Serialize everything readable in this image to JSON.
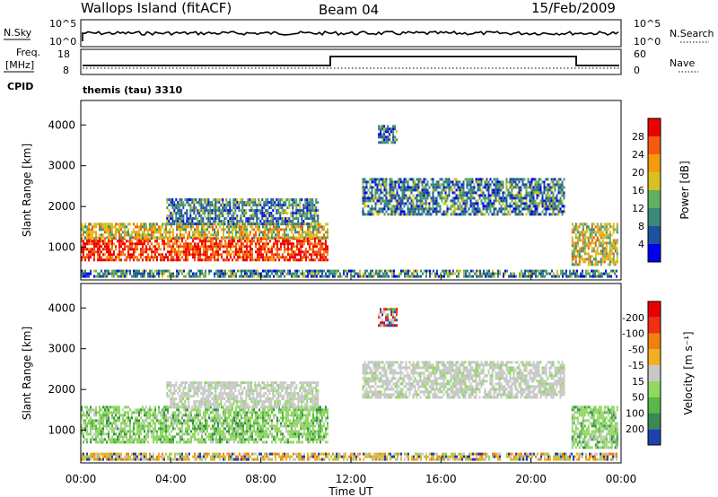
{
  "header": {
    "station": "Wallops Island (fitACF)",
    "beam": "Beam 04",
    "date": "15/Feb/2009"
  },
  "top_panels": {
    "nsky_label": "N.Sky",
    "nsky_ticks": [
      "10^5",
      "10^0"
    ],
    "nsearch_label": "N.Search",
    "nsearch_ticks": [
      "10^5",
      "10^0"
    ],
    "freq_label_1": "Freq.",
    "freq_label_2": "[MHz]",
    "freq_ticks": [
      "18",
      "8"
    ],
    "nave_label": "Nave",
    "nave_ticks": [
      "60",
      "0"
    ],
    "cpid_label": "CPID",
    "cpid_value": "themis (tau) 3310"
  },
  "chart_data": [
    {
      "type": "heatmap",
      "title": "",
      "xlabel": "Time UT",
      "ylabel": "Slant Range [km]",
      "x_ticks": [
        "00:00",
        "04:00",
        "08:00",
        "12:00",
        "16:00",
        "20:00",
        "00:00"
      ],
      "y_ticks": [
        "1000",
        "2000",
        "3000",
        "4000"
      ],
      "ylim": [
        200,
        4600
      ],
      "colorbar_label": "Power [dB]",
      "colorbar_ticks": [
        "4",
        "8",
        "12",
        "16",
        "20",
        "24",
        "28"
      ],
      "colorbar_colors": [
        "#0000ee",
        "#2050a0",
        "#3a8a78",
        "#5fb05f",
        "#d9c020",
        "#f59a10",
        "#f55a10",
        "#ee0000"
      ],
      "regions": [
        {
          "t": [
            0.0,
            11.0
          ],
          "r": [
            700,
            1250
          ],
          "level": "high"
        },
        {
          "t": [
            0.0,
            11.0
          ],
          "r": [
            1250,
            1600
          ],
          "level": "mid"
        },
        {
          "t": [
            3.8,
            10.5
          ],
          "r": [
            1600,
            2200
          ],
          "level": "low"
        },
        {
          "t": [
            12.5,
            21.5
          ],
          "r": [
            1800,
            2700
          ],
          "level": "low"
        },
        {
          "t": [
            13.2,
            14.0
          ],
          "r": [
            3600,
            4000
          ],
          "level": "low"
        },
        {
          "t": [
            21.8,
            23.8
          ],
          "r": [
            600,
            1600
          ],
          "level": "mid"
        },
        {
          "t": [
            0.0,
            23.8
          ],
          "r": [
            300,
            450
          ],
          "level": "low"
        }
      ]
    },
    {
      "type": "heatmap",
      "title": "",
      "xlabel": "Time UT",
      "ylabel": "Slant Range [km]",
      "x_ticks": [
        "00:00",
        "04:00",
        "08:00",
        "12:00",
        "16:00",
        "20:00",
        "00:00"
      ],
      "y_ticks": [
        "1000",
        "2000",
        "3000",
        "4000"
      ],
      "ylim": [
        200,
        4600
      ],
      "colorbar_label": "Velocity [m s⁻¹]",
      "colorbar_ticks": [
        "200",
        "100",
        "50",
        "15",
        "-15",
        "-50",
        "-100",
        "-200"
      ],
      "colorbar_colors": [
        "#2040b0",
        "#3a8a50",
        "#58b848",
        "#90d860",
        "#c8c8c8",
        "#f0b020",
        "#f08010",
        "#f03010",
        "#e80000"
      ],
      "regions": [
        {
          "t": [
            0.0,
            11.0
          ],
          "r": [
            700,
            1600
          ],
          "level": "positive"
        },
        {
          "t": [
            3.8,
            10.5
          ],
          "r": [
            1600,
            2200
          ],
          "level": "zero"
        },
        {
          "t": [
            12.5,
            21.5
          ],
          "r": [
            1800,
            2700
          ],
          "level": "zero"
        },
        {
          "t": [
            13.2,
            14.0
          ],
          "r": [
            3600,
            4000
          ],
          "level": "mixed"
        },
        {
          "t": [
            21.8,
            23.8
          ],
          "r": [
            600,
            1600
          ],
          "level": "positive"
        },
        {
          "t": [
            0.0,
            23.8
          ],
          "r": [
            300,
            450
          ],
          "level": "negative"
        }
      ]
    }
  ]
}
